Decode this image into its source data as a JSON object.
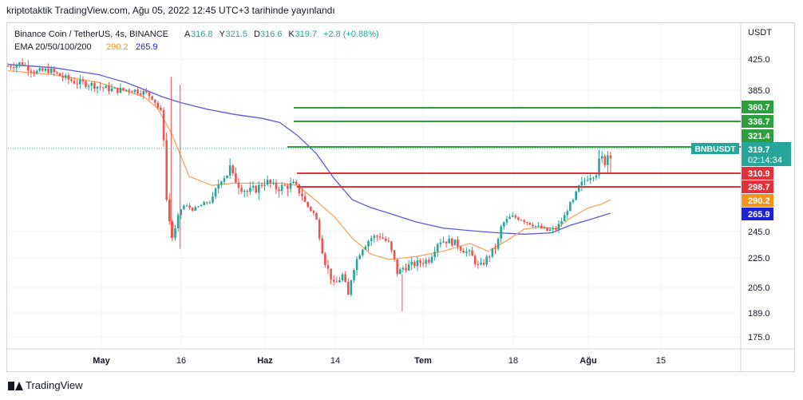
{
  "header_text": "kriptotaktik TradingView.com, Ağu 05, 2022 12:45 UTC+3 tarihinde yayınlandı",
  "footer_brand": "TradingView",
  "chart_data": {
    "type": "candlestick",
    "symbol_line": "Binance Coin / TetherUS, 4s, BINANCE",
    "ohlc": {
      "A": "316.8",
      "Y": "321.5",
      "D": "316.6",
      "K": "319.7",
      "change": "+2.8 (+0.88%)"
    },
    "indicator_line": "EMA 20/50/100/200",
    "ema_values": [
      "290.2",
      "265.9"
    ],
    "y_axis_title": "USDT",
    "y_ticks": [
      425.0,
      385.0,
      245.0,
      225.0,
      205.0,
      189.0,
      175.0
    ],
    "y_tick_labels": [
      "425.0",
      "385.0",
      "245.0",
      "225.0",
      "205.0",
      "189.0",
      "175.0"
    ],
    "x_tick_labels": [
      "May",
      "16",
      "Haz",
      "14",
      "Tem",
      "18",
      "Ağu",
      "15"
    ],
    "symbol_tag": "BNBUSDT",
    "countdown": "02:14:34",
    "levels": [
      {
        "price": 360.7,
        "label": "360.7",
        "color": "#2e9e3f",
        "kind": "resistance"
      },
      {
        "price": 336.7,
        "label": "336.7",
        "color": "#2e9e3f",
        "kind": "resistance"
      },
      {
        "price": 321.4,
        "label": "321.4",
        "color": "#2e9e3f",
        "kind": "resistance"
      },
      {
        "price": 310.9,
        "label": "310.9",
        "color": "#e0323c",
        "kind": "support"
      },
      {
        "price": 298.7,
        "label": "298.7",
        "color": "#e0323c",
        "kind": "support"
      }
    ],
    "last_price": {
      "value": 319.7,
      "label": "319.7",
      "color": "#26a69a"
    },
    "ema_badges": [
      {
        "value": 290.2,
        "label": "290.2",
        "color": "#f7931a"
      },
      {
        "value": 265.9,
        "label": "265.9",
        "color": "#1e22d6"
      }
    ],
    "colors": {
      "up": "#26a69a",
      "down": "#ef5350",
      "ema20": "#f7a35c",
      "ema200": "#5b5bd6"
    },
    "close_path": [
      [
        0,
        416
      ],
      [
        3,
        420
      ],
      [
        6,
        408
      ],
      [
        9,
        411
      ],
      [
        12,
        402
      ],
      [
        15,
        395
      ],
      [
        18,
        393
      ],
      [
        21,
        388
      ],
      [
        24,
        385
      ],
      [
        27,
        386
      ],
      [
        30,
        382
      ],
      [
        32,
        375
      ],
      [
        34,
        350
      ],
      [
        35,
        290
      ],
      [
        36,
        238
      ],
      [
        37,
        248
      ],
      [
        38,
        272
      ],
      [
        39,
        280
      ],
      [
        41,
        272
      ],
      [
        43,
        282
      ],
      [
        45,
        288
      ],
      [
        47,
        306
      ],
      [
        49,
        312
      ],
      [
        51,
        300
      ],
      [
        53,
        295
      ],
      [
        55,
        298
      ],
      [
        57,
        304
      ],
      [
        59,
        298
      ],
      [
        61,
        299
      ],
      [
        63,
        301
      ],
      [
        65,
        293
      ],
      [
        66,
        279
      ],
      [
        67,
        270
      ],
      [
        68,
        260
      ],
      [
        69,
        236
      ],
      [
        70,
        222
      ],
      [
        71,
        214
      ],
      [
        72,
        206
      ],
      [
        74,
        214
      ],
      [
        75,
        198
      ],
      [
        76,
        216
      ],
      [
        78,
        232
      ],
      [
        80,
        240
      ],
      [
        82,
        242
      ],
      [
        84,
        236
      ],
      [
        85,
        226
      ],
      [
        86,
        214
      ],
      [
        87,
        218
      ],
      [
        89,
        220
      ],
      [
        91,
        222
      ],
      [
        93,
        224
      ],
      [
        95,
        238
      ],
      [
        97,
        238
      ],
      [
        99,
        236
      ],
      [
        100,
        232
      ],
      [
        102,
        228
      ],
      [
        104,
        218
      ],
      [
        106,
        226
      ],
      [
        108,
        235
      ],
      [
        109,
        253
      ],
      [
        111,
        262
      ],
      [
        113,
        260
      ],
      [
        115,
        255
      ],
      [
        117,
        250
      ],
      [
        119,
        246
      ],
      [
        121,
        248
      ],
      [
        122,
        256
      ],
      [
        123,
        264
      ],
      [
        124,
        282
      ],
      [
        126,
        298
      ],
      [
        128,
        308
      ],
      [
        129,
        310
      ],
      [
        130,
        312
      ],
      [
        131,
        315
      ],
      [
        132,
        317
      ],
      [
        133,
        319.7
      ]
    ],
    "ema20_path": [
      [
        0,
        410
      ],
      [
        10,
        405
      ],
      [
        20,
        395
      ],
      [
        26,
        384
      ],
      [
        30,
        376
      ],
      [
        33,
        360
      ],
      [
        36,
        330
      ],
      [
        40,
        308
      ],
      [
        45,
        300
      ],
      [
        50,
        302
      ],
      [
        55,
        302
      ],
      [
        60,
        302
      ],
      [
        64,
        300
      ],
      [
        68,
        288
      ],
      [
        72,
        262
      ],
      [
        76,
        240
      ],
      [
        80,
        228
      ],
      [
        84,
        224
      ],
      [
        90,
        226
      ],
      [
        96,
        230
      ],
      [
        102,
        236
      ],
      [
        106,
        230
      ],
      [
        110,
        238
      ],
      [
        114,
        248
      ],
      [
        118,
        250
      ],
      [
        121,
        248
      ],
      [
        124,
        260
      ],
      [
        128,
        275
      ],
      [
        131,
        282
      ],
      [
        133,
        290.2
      ]
    ],
    "ema200_path": [
      [
        0,
        418
      ],
      [
        10,
        414
      ],
      [
        20,
        405
      ],
      [
        26,
        395
      ],
      [
        30,
        386
      ],
      [
        34,
        376
      ],
      [
        38,
        368
      ],
      [
        44,
        358
      ],
      [
        50,
        349
      ],
      [
        56,
        342
      ],
      [
        60,
        336
      ],
      [
        64,
        328
      ],
      [
        68,
        318
      ],
      [
        72,
        306
      ],
      [
        76,
        290
      ],
      [
        80,
        276
      ],
      [
        84,
        266
      ],
      [
        90,
        256
      ],
      [
        96,
        249
      ],
      [
        102,
        246
      ],
      [
        108,
        244
      ],
      [
        114,
        243
      ],
      [
        120,
        244
      ],
      [
        124,
        252
      ],
      [
        128,
        258
      ],
      [
        133,
        265.9
      ]
    ]
  }
}
